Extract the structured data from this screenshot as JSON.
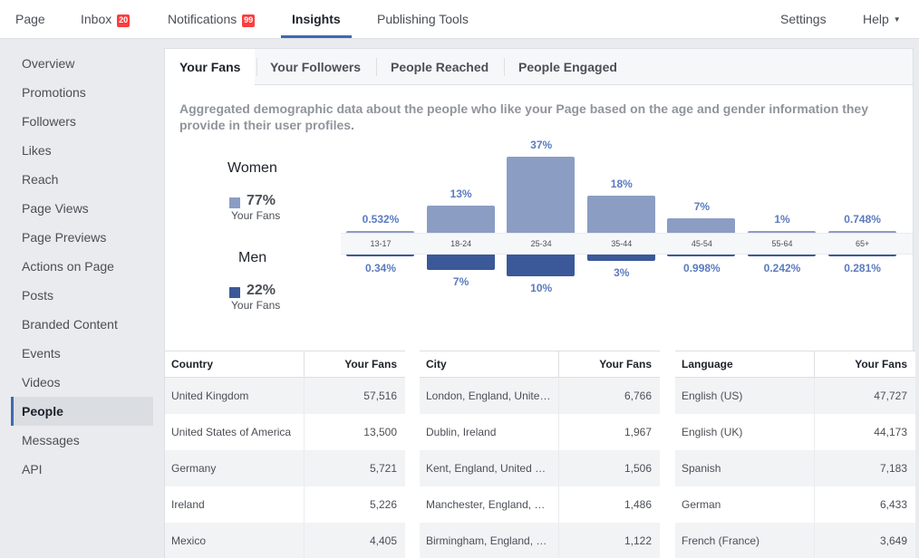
{
  "topnav": {
    "page": "Page",
    "inbox": "Inbox",
    "inbox_badge": "20",
    "notifications": "Notifications",
    "notifications_badge": "99",
    "insights": "Insights",
    "publishing_tools": "Publishing Tools",
    "settings": "Settings",
    "help": "Help"
  },
  "sidebar": {
    "items": [
      "Overview",
      "Promotions",
      "Followers",
      "Likes",
      "Reach",
      "Page Views",
      "Page Previews",
      "Actions on Page",
      "Posts",
      "Branded Content",
      "Events",
      "Videos",
      "People",
      "Messages",
      "API"
    ],
    "active": "People"
  },
  "tabs": [
    "Your Fans",
    "Your Followers",
    "People Reached",
    "People Engaged"
  ],
  "description": "Aggregated demographic data about the people who like your Page based on the age and gender information they provide in their user profiles.",
  "summary": {
    "women_label": "Women",
    "women_pct": "77%",
    "women_sub": "Your Fans",
    "men_label": "Men",
    "men_pct": "22%",
    "men_sub": "Your Fans"
  },
  "colors": {
    "women": "#8b9dc3",
    "men": "#3b5998",
    "accent": "#4267b2",
    "badge": "#fa3e3e"
  },
  "chart_data": {
    "type": "bar",
    "categories": [
      "13-17",
      "18-24",
      "25-34",
      "35-44",
      "45-54",
      "55-64",
      "65+"
    ],
    "series": [
      {
        "name": "Women",
        "values": [
          0.532,
          13,
          37,
          18,
          7,
          1,
          0.748
        ],
        "labels": [
          "0.532%",
          "13%",
          "37%",
          "18%",
          "7%",
          "1%",
          "0.748%"
        ]
      },
      {
        "name": "Men",
        "values": [
          0.34,
          7,
          10,
          3,
          0.998,
          0.242,
          0.281
        ],
        "labels": [
          "0.34%",
          "7%",
          "10%",
          "3%",
          "0.998%",
          "0.242%",
          "0.281%"
        ]
      }
    ]
  },
  "tables": [
    {
      "col1": "Country",
      "col2": "Your Fans",
      "rows": [
        [
          "United Kingdom",
          "57,516"
        ],
        [
          "United States of America",
          "13,500"
        ],
        [
          "Germany",
          "5,721"
        ],
        [
          "Ireland",
          "5,226"
        ],
        [
          "Mexico",
          "4,405"
        ]
      ]
    },
    {
      "col1": "City",
      "col2": "Your Fans",
      "rows": [
        [
          "London, England, United Kingdom",
          "6,766"
        ],
        [
          "Dublin, Ireland",
          "1,967"
        ],
        [
          "Kent, England, United Kingdom",
          "1,506"
        ],
        [
          "Manchester, England, United Kingdom",
          "1,486"
        ],
        [
          "Birmingham, England, United Kingdom",
          "1,122"
        ]
      ]
    },
    {
      "col1": "Language",
      "col2": "Your Fans",
      "rows": [
        [
          "English (US)",
          "47,727"
        ],
        [
          "English (UK)",
          "44,173"
        ],
        [
          "Spanish",
          "7,183"
        ],
        [
          "German",
          "6,433"
        ],
        [
          "French (France)",
          "3,649"
        ]
      ]
    }
  ]
}
